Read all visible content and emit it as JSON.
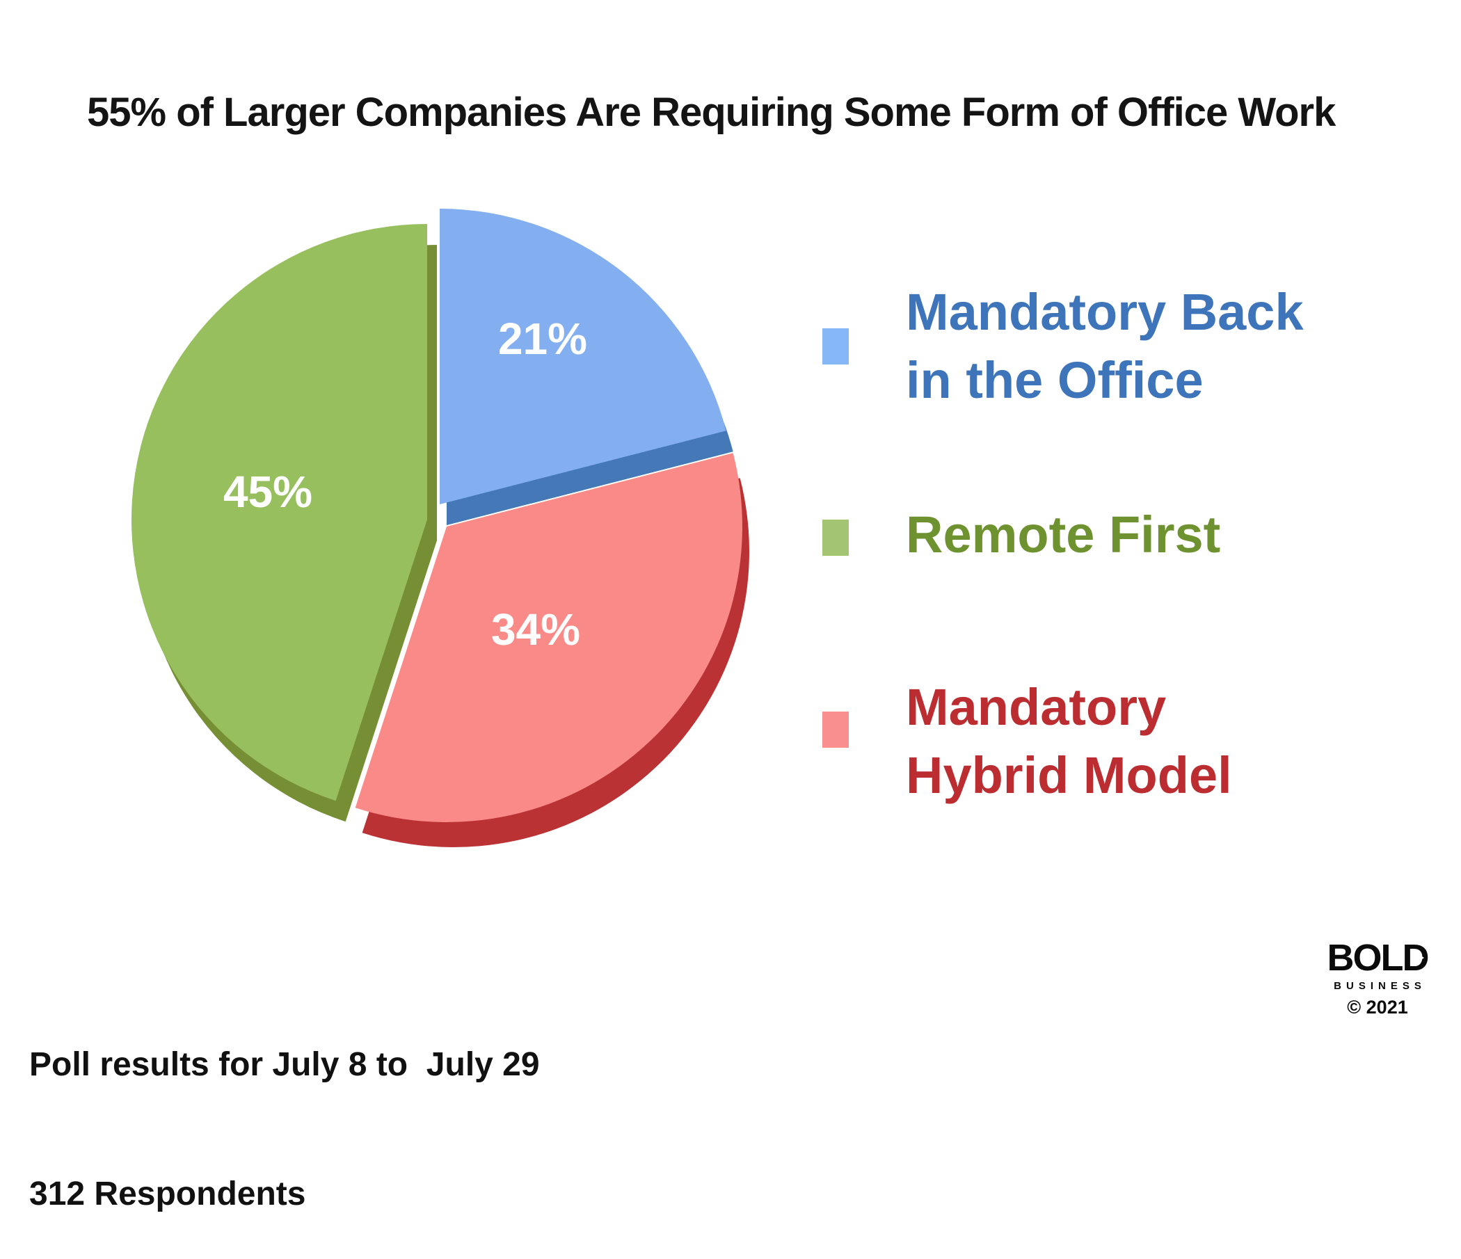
{
  "title": "55% of Larger Companies Are Requiring Some Form of Office Work",
  "chart_data": {
    "type": "pie",
    "title": "55% of Larger Companies Are Requiring Some Form of Office Work",
    "unit": "percent",
    "total": 100,
    "start_angle_deg": 0,
    "direction": "clockwise",
    "style": "3d-exploded",
    "slices": [
      {
        "label": "Mandatory Back in the Office",
        "value": 21,
        "display": "21%",
        "color": "#83AFF1",
        "side_color": "#4478B7"
      },
      {
        "label": "Mandatory Hybrid Model",
        "value": 34,
        "display": "34%",
        "color": "#F98A87",
        "side_color": "#BB3235"
      },
      {
        "label": "Remote First",
        "value": 45,
        "display": "45%",
        "color": "#97BF5D",
        "side_color": "#768F35"
      }
    ],
    "slice_label_color": "#FFFFFF",
    "legend_position": "right"
  },
  "legend": {
    "items": [
      {
        "lines": [
          "Mandatory Back",
          "in the Office"
        ],
        "swatch_color": "#86B7F6",
        "text_color": "#3E74B9"
      },
      {
        "lines": [
          "Remote First"
        ],
        "swatch_color": "#A3C473",
        "text_color": "#6F9230"
      },
      {
        "lines": [
          "Mandatory",
          "Hybrid Model"
        ],
        "swatch_color": "#FA8F8F",
        "text_color": "#BB2D31"
      }
    ]
  },
  "footer": {
    "line1": "Poll results for July 8 to  July 29",
    "line2": "312 Respondents"
  },
  "logo": {
    "name": "BOLD",
    "sub": "BUSINESS",
    "year": "© 2021"
  }
}
